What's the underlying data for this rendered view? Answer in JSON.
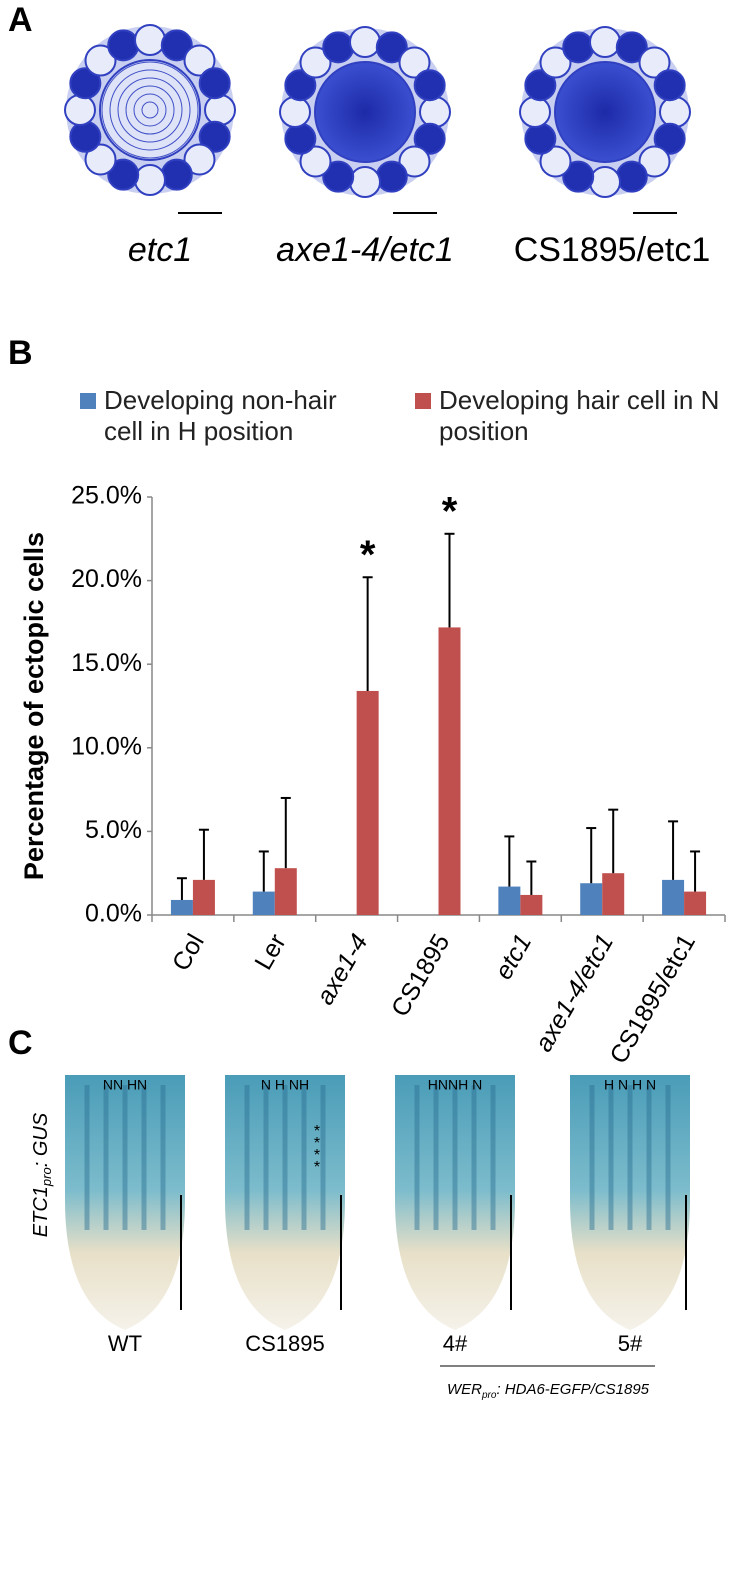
{
  "panels": {
    "a": "A",
    "b": "B",
    "c": "C"
  },
  "panel_a": {
    "captions": [
      "etc1",
      "axe1-4/etc1",
      "CS1895/etc1"
    ]
  },
  "chart_data": {
    "type": "bar",
    "y_label": "Percentage of ectopic cells",
    "categories": [
      "Col",
      "Ler",
      "axe1-4",
      "CS1895",
      "etc1",
      "axe1-4/etc1",
      "CS1895/etc1"
    ],
    "italic_categories": [
      false,
      false,
      true,
      false,
      true,
      true,
      false
    ],
    "series": [
      {
        "name": "Developing non-hair cell in H position",
        "color": "#4f81bd",
        "values": [
          0.9,
          1.4,
          null,
          null,
          1.7,
          1.9,
          2.1
        ],
        "errors": [
          1.3,
          2.4,
          null,
          null,
          3.0,
          3.3,
          3.5
        ]
      },
      {
        "name": "Developing hair cell in N position",
        "color": "#c0504d",
        "values": [
          2.1,
          2.8,
          13.4,
          17.2,
          1.2,
          2.5,
          1.4
        ],
        "errors": [
          3.0,
          4.2,
          6.8,
          5.6,
          2.0,
          3.8,
          2.4
        ]
      }
    ],
    "annotations": [
      null,
      null,
      "*",
      "*",
      null,
      null,
      null
    ],
    "ylim": [
      0,
      25
    ],
    "yticks": [
      {
        "value": 0,
        "label": "0.0%"
      },
      {
        "value": 5,
        "label": "5.0%"
      },
      {
        "value": 10,
        "label": "10.0%"
      },
      {
        "value": 15,
        "label": "15.0%"
      },
      {
        "value": 20,
        "label": "20.0%"
      },
      {
        "value": 25,
        "label": "25.0%"
      }
    ]
  },
  "panel_c": {
    "row_label": {
      "gene": "ETC1",
      "subscript": "pro",
      "suffix": "GUS"
    },
    "images": [
      {
        "positions": "NN HN",
        "label": "WT"
      },
      {
        "positions": "N H NH",
        "label": "CS1895",
        "asterisks": [
          "*",
          "*",
          "*",
          "*"
        ]
      },
      {
        "positions": "HNNH N",
        "label": "4#"
      },
      {
        "positions": "H N H N",
        "label": "5#"
      }
    ],
    "construct": {
      "gene": "WER",
      "subscript": "pro",
      "suffix": "HDA6-EGFP/CS1895"
    }
  }
}
